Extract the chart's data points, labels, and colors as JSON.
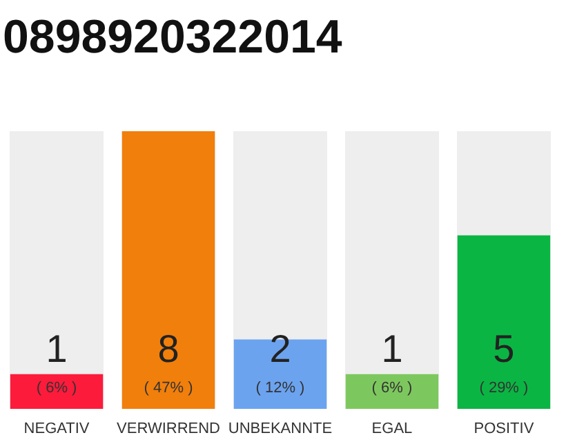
{
  "chart_data": {
    "type": "bar",
    "title": "0898920322014",
    "categories": [
      "NEGATIV",
      "VERWIRREND",
      "UNBEKANNTE",
      "EGAL",
      "POSITIV"
    ],
    "values": [
      1,
      8,
      2,
      1,
      5
    ],
    "colors": [
      "#fc1b3b",
      "#f17f0b",
      "#6ba3ef",
      "#7dc85e",
      "#0bb543"
    ],
    "data_labels": true,
    "annotations": [
      "( 6% )",
      "( 47% )",
      "( 12% )",
      "( 6% )",
      "( 29% )"
    ],
    "grid": false,
    "legend": false
  }
}
